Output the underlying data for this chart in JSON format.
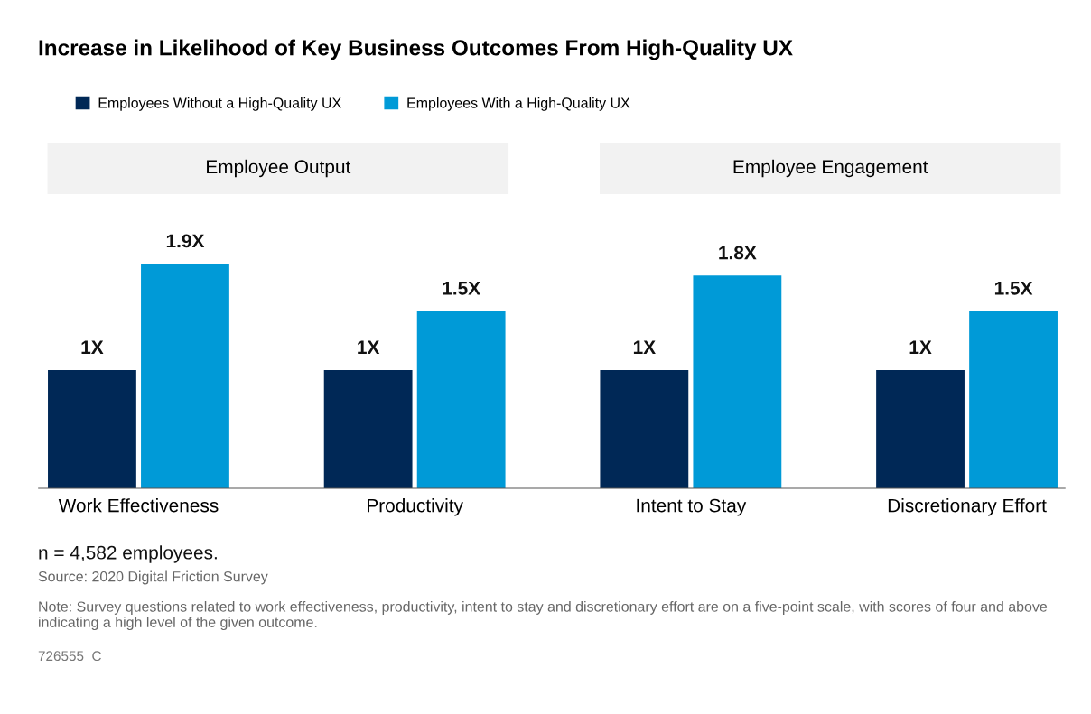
{
  "chart_data": {
    "type": "bar",
    "title": "Increase in Likelihood of Key Business Outcomes From High-Quality UX",
    "categories": [
      "Work Effectiveness",
      "Productivity",
      "Intent to Stay",
      "Discretionary Effort"
    ],
    "series": [
      {
        "name": "Employees Without a High-Quality UX",
        "color": "#002856",
        "values": [
          1,
          1,
          1,
          1
        ],
        "value_labels": [
          "1X",
          "1X",
          "1X",
          "1X"
        ]
      },
      {
        "name": "Employees With a High-Quality UX",
        "color": "#009ad7",
        "values": [
          1.9,
          1.5,
          1.8,
          1.5
        ],
        "value_labels": [
          "1.9X",
          "1.5X",
          "1.8X",
          "1.5X"
        ]
      }
    ],
    "legend": "top left",
    "grid": false,
    "annotations": [
      "Employee Output",
      "Employee Engagement",
      "n = 4,582 employees.",
      "Source: 2020 Digital Friction Survey",
      "Note: Survey questions related to work effectiveness, productivity, intent to stay and discretionary effort are on a five-point scale, with scores of four and above indicating a high level of the given outcome.",
      "726555_C"
    ]
  }
}
